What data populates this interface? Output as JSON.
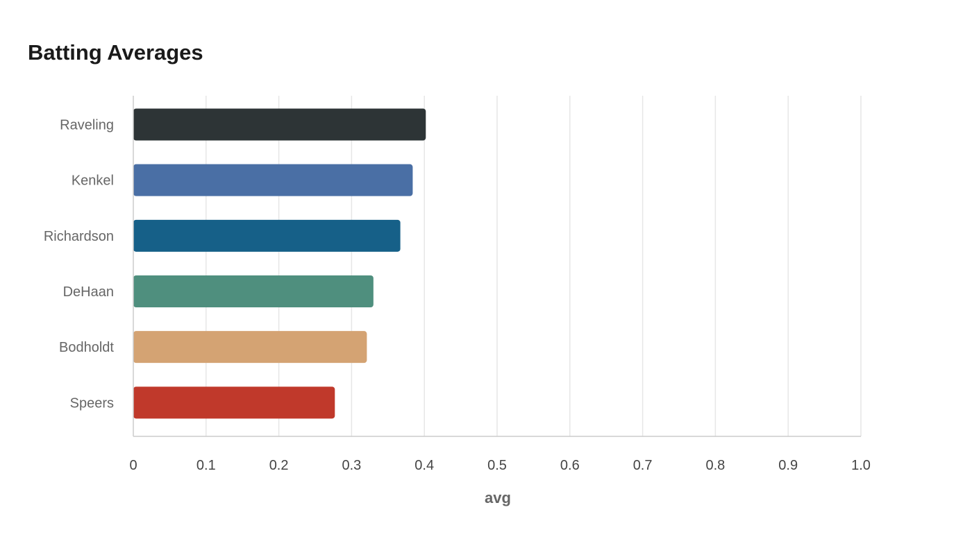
{
  "chart_data": {
    "type": "bar",
    "orientation": "horizontal",
    "title": "Batting Averages",
    "xlabel": "avg",
    "ylabel": "",
    "xlim": [
      0,
      1.0
    ],
    "x_ticks": [
      "0",
      "0.1",
      "0.2",
      "0.3",
      "0.4",
      "0.5",
      "0.6",
      "0.7",
      "0.8",
      "0.9",
      "1.0"
    ],
    "x_tick_values": [
      0,
      0.1,
      0.2,
      0.3,
      0.4,
      0.5,
      0.6,
      0.7,
      0.8,
      0.9,
      1.0
    ],
    "categories": [
      "Raveling",
      "Kenkel",
      "Richardson",
      "DeHaan",
      "Bodholdt",
      "Speers"
    ],
    "values": [
      0.402,
      0.384,
      0.367,
      0.33,
      0.321,
      0.277
    ],
    "colors": [
      "#2d3436",
      "#4a6fa5",
      "#166088",
      "#4f8f7e",
      "#d4a373",
      "#c0392b"
    ],
    "grid": true,
    "legend": false
  }
}
